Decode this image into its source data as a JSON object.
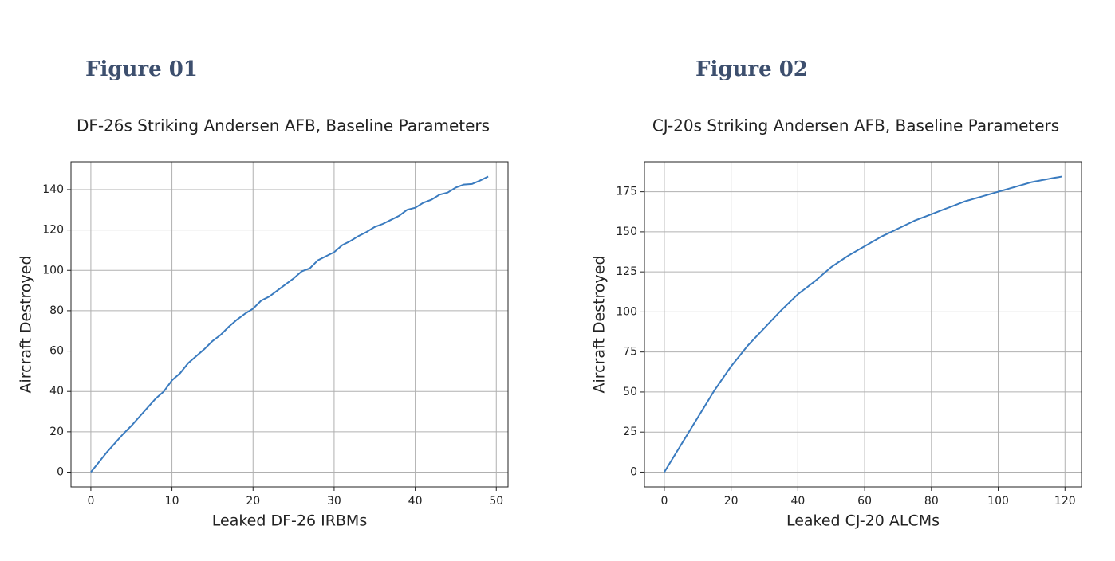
{
  "chart_data": [
    {
      "type": "line",
      "label": "Figure 01",
      "title": "DF-26s Striking Andersen AFB, Baseline Parameters",
      "xlabel": "Leaked DF-26 IRBMs",
      "ylabel": "Aircraft Destroyed",
      "color": "#3a7bbf",
      "grid": true,
      "xlim": [
        -2.45,
        51.45
      ],
      "ylim": [
        -7.3,
        153.8
      ],
      "xticks": [
        0,
        10,
        20,
        30,
        40,
        50
      ],
      "yticks": [
        0,
        20,
        40,
        60,
        80,
        100,
        120,
        140
      ],
      "x": [
        0,
        1,
        2,
        3,
        4,
        5,
        6,
        7,
        8,
        9,
        10,
        11,
        12,
        13,
        14,
        15,
        16,
        17,
        18,
        19,
        20,
        21,
        22,
        23,
        24,
        25,
        26,
        27,
        28,
        29,
        30,
        31,
        32,
        33,
        34,
        35,
        36,
        37,
        38,
        39,
        40,
        41,
        42,
        43,
        44,
        45,
        46,
        47,
        48,
        49
      ],
      "values": [
        0,
        5,
        10,
        14.5,
        19,
        23,
        27.5,
        32,
        36.5,
        40,
        45.5,
        49,
        54,
        57.5,
        61,
        65,
        68,
        72,
        75.5,
        78.5,
        81,
        85,
        87,
        90,
        93,
        96,
        99.5,
        101,
        105,
        107,
        109,
        112.5,
        114.5,
        117,
        119,
        121.5,
        123,
        125,
        127,
        130,
        131,
        133.5,
        135,
        137.5,
        138.5,
        141,
        142.5,
        142.8,
        144.5,
        146.5
      ]
    },
    {
      "type": "line",
      "label": "Figure 02",
      "title": "CJ-20s Striking Andersen AFB, Baseline Parameters",
      "xlabel": "Leaked CJ-20 ALCMs",
      "ylabel": "Aircraft Destroyed",
      "color": "#3a7bbf",
      "grid": true,
      "xlim": [
        -5.95,
        124.95
      ],
      "ylim": [
        -9.225,
        193.725
      ],
      "xticks": [
        0,
        20,
        40,
        60,
        80,
        100,
        120
      ],
      "yticks": [
        0,
        25,
        50,
        75,
        100,
        125,
        150,
        175
      ],
      "x": [
        0,
        1,
        2,
        3,
        4,
        5,
        6,
        7,
        8,
        9,
        10,
        11,
        12,
        13,
        14,
        15,
        16,
        17,
        18,
        19,
        20,
        21,
        22,
        23,
        24,
        25,
        26,
        27,
        28,
        29,
        30,
        31,
        32,
        33,
        34,
        35,
        36,
        37,
        38,
        39,
        40,
        41,
        42,
        43,
        44,
        45,
        46,
        47,
        48,
        49,
        50,
        51,
        52,
        53,
        54,
        55,
        56,
        57,
        58,
        59,
        60,
        61,
        62,
        63,
        64,
        65,
        66,
        67,
        68,
        69,
        70,
        71,
        72,
        73,
        74,
        75,
        76,
        77,
        78,
        79,
        80,
        81,
        82,
        83,
        84,
        85,
        86,
        87,
        88,
        89,
        90,
        91,
        92,
        93,
        94,
        95,
        96,
        97,
        98,
        99,
        100,
        101,
        102,
        103,
        104,
        105,
        106,
        107,
        108,
        109,
        110,
        111,
        112,
        113,
        114,
        115,
        116,
        117,
        118,
        119
      ],
      "values": [
        0,
        3.4,
        6.8,
        10.2,
        13.6,
        17,
        20.4,
        23.8,
        27.2,
        30.6,
        34,
        37.4,
        40.8,
        44.2,
        47.6,
        51,
        54,
        57,
        60,
        63,
        66,
        68.6,
        71.2,
        73.8,
        76.4,
        79,
        81.2,
        83.4,
        85.6,
        87.8,
        90,
        92.2,
        94.4,
        96.6,
        98.8,
        101,
        103,
        105,
        107,
        109,
        111,
        112.6,
        114.2,
        115.8,
        117.4,
        119,
        120.8,
        122.6,
        124.4,
        126.2,
        128,
        129.4,
        130.8,
        132.2,
        133.6,
        135,
        136.2,
        137.4,
        138.6,
        139.8,
        141,
        142.2,
        143.4,
        144.6,
        145.8,
        147,
        148,
        149,
        150,
        151,
        152,
        153,
        154,
        155,
        156,
        157,
        157.8,
        158.6,
        159.4,
        160.2,
        161,
        161.8,
        162.6,
        163.4,
        164.2,
        165,
        165.8,
        166.6,
        167.4,
        168.2,
        169,
        169.6,
        170.2,
        170.8,
        171.4,
        172,
        172.6,
        173.2,
        173.8,
        174.4,
        175,
        175.6,
        176.2,
        176.8,
        177.4,
        178,
        178.6,
        179.2,
        179.8,
        180.4,
        181,
        181.4,
        181.8,
        182.2,
        182.6,
        183,
        183.4,
        183.8,
        184.1,
        184.5
      ]
    }
  ]
}
